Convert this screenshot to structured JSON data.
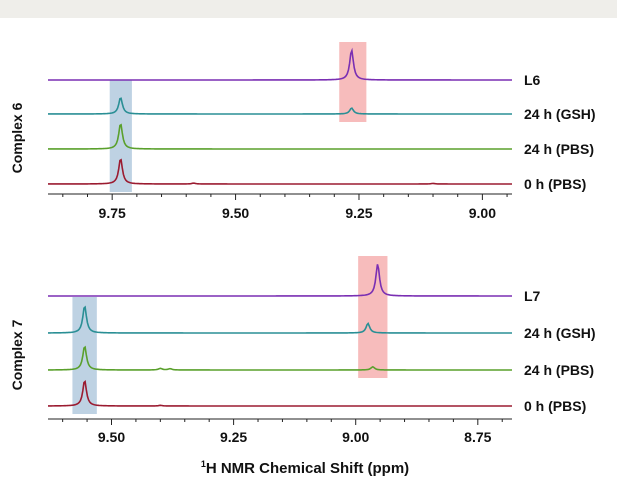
{
  "chart_data": [
    {
      "type": "line",
      "title": "Complex 6",
      "xlabel": "",
      "x_reversed": true,
      "xlim": [
        9.88,
        8.94
      ],
      "x_ticks": [
        9.75,
        9.5,
        9.25,
        9.0
      ],
      "x_tick_labels": [
        "9.75",
        "9.50",
        "9.25",
        "9.00"
      ],
      "series": [
        {
          "name": "L6",
          "color": "#7a2fb3",
          "peaks": [
            {
              "x": 9.265,
              "height": 1.0
            }
          ]
        },
        {
          "name": "24 h (GSH)",
          "color": "#2a8f95",
          "peaks": [
            {
              "x": 9.733,
              "height": 0.55
            },
            {
              "x": 9.265,
              "height": 0.2
            }
          ]
        },
        {
          "name": "24 h (PBS)",
          "color": "#5aa02c",
          "peaks": [
            {
              "x": 9.733,
              "height": 0.85
            }
          ]
        },
        {
          "name": "0 h (PBS)",
          "color": "#9b1b30",
          "peaks": [
            {
              "x": 9.733,
              "height": 0.85
            },
            {
              "x": 9.585,
              "height": 0.03
            },
            {
              "x": 9.1,
              "height": 0.02
            }
          ]
        }
      ],
      "highlights": [
        {
          "x_from": 9.755,
          "x_to": 9.71,
          "color": "#a8c3da"
        },
        {
          "x_from": 9.29,
          "x_to": 9.235,
          "color": "#f4a6a6"
        }
      ]
    },
    {
      "type": "line",
      "title": "Complex 7",
      "xlabel": "¹H NMR Chemical Shift (ppm)",
      "x_reversed": true,
      "xlim": [
        9.63,
        8.68
      ],
      "x_ticks": [
        9.5,
        9.25,
        9.0,
        8.75
      ],
      "x_tick_labels": [
        "9.50",
        "9.25",
        "9.00",
        "8.75"
      ],
      "series": [
        {
          "name": "L7",
          "color": "#7a2fb3",
          "peaks": [
            {
              "x": 8.955,
              "height": 1.0
            }
          ]
        },
        {
          "name": "24 h (GSH)",
          "color": "#2a8f95",
          "peaks": [
            {
              "x": 9.555,
              "height": 0.85
            },
            {
              "x": 8.975,
              "height": 0.3
            }
          ]
        },
        {
          "name": "24 h (PBS)",
          "color": "#5aa02c",
          "peaks": [
            {
              "x": 9.555,
              "height": 0.75
            },
            {
              "x": 9.4,
              "height": 0.05
            },
            {
              "x": 9.38,
              "height": 0.04
            },
            {
              "x": 8.965,
              "height": 0.1
            }
          ]
        },
        {
          "name": "0 h (PBS)",
          "color": "#9b1b30",
          "peaks": [
            {
              "x": 9.555,
              "height": 0.8
            },
            {
              "x": 9.4,
              "height": 0.02
            }
          ]
        }
      ],
      "highlights": [
        {
          "x_from": 9.58,
          "x_to": 9.53,
          "color": "#a8c3da"
        },
        {
          "x_from": 8.995,
          "x_to": 8.935,
          "color": "#f4a6a6"
        }
      ]
    }
  ]
}
